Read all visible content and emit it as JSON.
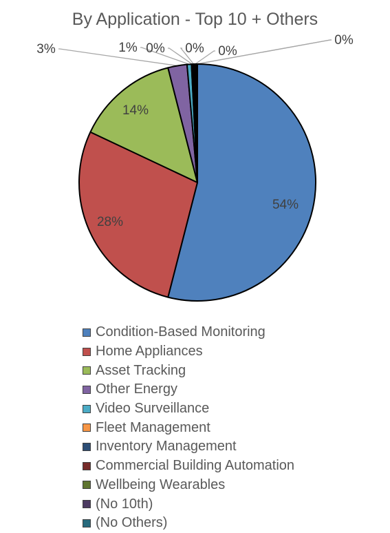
{
  "chart_data": {
    "type": "pie",
    "title": "By Application - Top 10 + Others",
    "legend_position": "bottom",
    "slices": [
      {
        "name": "Condition-Based Monitoring",
        "value": 54,
        "label": "54%",
        "color": "#4f81bd"
      },
      {
        "name": "Home Appliances",
        "value": 28,
        "label": "28%",
        "color": "#c0504d"
      },
      {
        "name": "Asset Tracking",
        "value": 14,
        "label": "14%",
        "color": "#9bbb59"
      },
      {
        "name": "Other Energy",
        "value": 2.6,
        "label": "3%",
        "color": "#8064a2"
      },
      {
        "name": "Video Surveillance",
        "value": 0.6,
        "label": "1%",
        "color": "#4bacc6"
      },
      {
        "name": "Fleet Management",
        "value": 0.2,
        "label": "0%",
        "color": "#f79646"
      },
      {
        "name": "Inventory Management",
        "value": 0.2,
        "label": "0%",
        "color": "#2c4d75"
      },
      {
        "name": "Commercial Building Automation",
        "value": 0.2,
        "label": "0%",
        "color": "#772c2a"
      },
      {
        "name": "Wellbeing Wearables",
        "value": 0.1,
        "label": "0%",
        "color": "#5f7530"
      },
      {
        "name": "(No 10th)",
        "value": 0,
        "label": "",
        "color": "#4d3b62"
      },
      {
        "name": "(No Others)",
        "value": 0.1,
        "label": "0%",
        "color": "#276a7c"
      }
    ]
  }
}
